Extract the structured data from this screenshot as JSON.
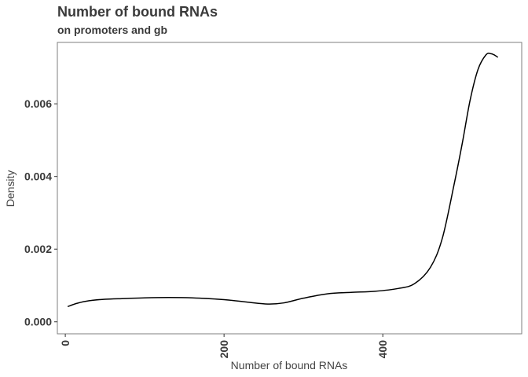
{
  "chart_data": {
    "type": "line",
    "title": "Number of bound RNAs",
    "subtitle": "on promoters and gb",
    "xlabel": "Number of bound RNAs",
    "ylabel": "Density",
    "xlim": [
      -10,
      575
    ],
    "ylim": [
      -0.00033,
      0.00769
    ],
    "x_ticks": [
      0,
      200,
      400
    ],
    "y_ticks": [
      0.0,
      0.002,
      0.004,
      0.006
    ],
    "x_tick_labels": [
      "0",
      "200",
      "400"
    ],
    "y_tick_labels": [
      "0.000",
      "0.002",
      "0.004",
      "0.006"
    ],
    "grid": false,
    "legend": "none",
    "series": [
      {
        "color": "#000000",
        "x": [
          3,
          15,
          30,
          50,
          75,
          100,
          130,
          160,
          200,
          230,
          255,
          275,
          300,
          330,
          360,
          390,
          420,
          440,
          460,
          475,
          490,
          500,
          510,
          520,
          530,
          536,
          540,
          545
        ],
        "y": [
          0.00042,
          0.00051,
          0.00058,
          0.00062,
          0.00064,
          0.00066,
          0.00067,
          0.00066,
          0.00061,
          0.00054,
          0.00049,
          0.00052,
          0.00065,
          0.00077,
          0.00081,
          0.00084,
          0.00092,
          0.00105,
          0.0015,
          0.0023,
          0.0038,
          0.0049,
          0.0061,
          0.00695,
          0.00735,
          0.00738,
          0.00735,
          0.00728
        ]
      }
    ]
  }
}
